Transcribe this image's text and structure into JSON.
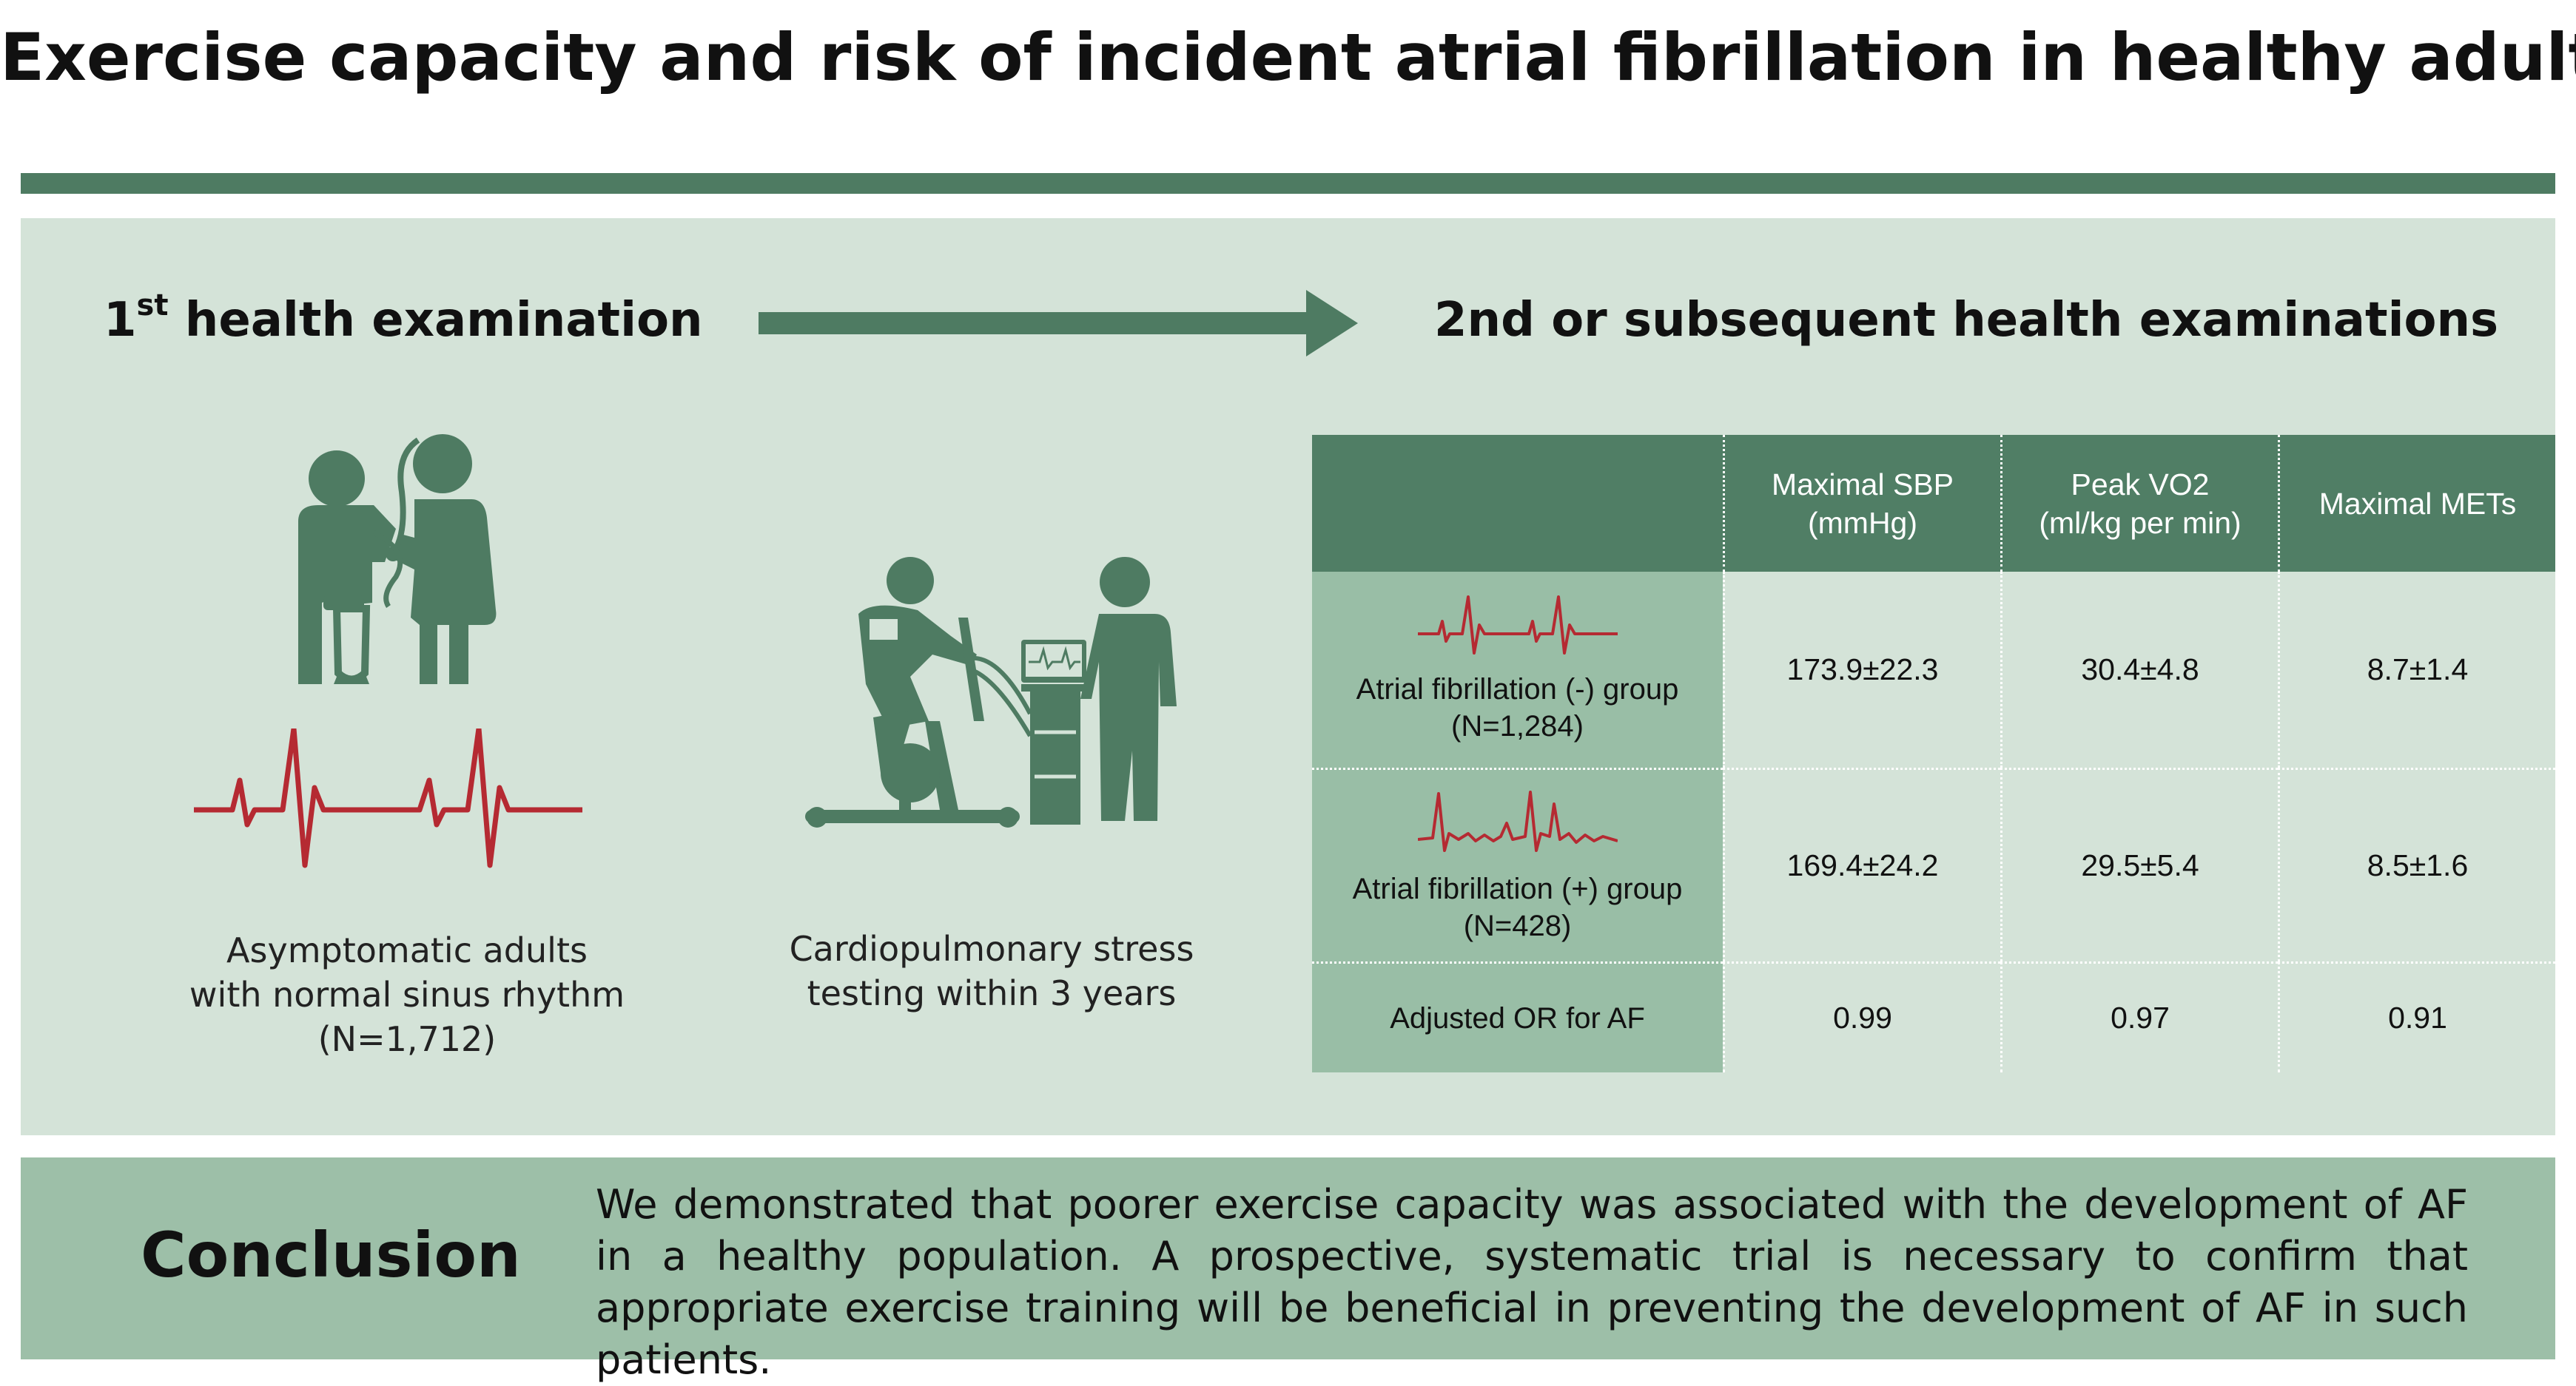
{
  "title": "Exercise capacity and risk of incident atrial fibrillation in healthy adults",
  "colors": {
    "dark_green": "#4e7b62",
    "panel_green": "#d4e3d8",
    "row_label_green": "#99bea6",
    "conclusion_green": "#9dbfa8",
    "ecg_red": "#b52a32"
  },
  "flow": {
    "first": {
      "heading_text": "health examination",
      "ordinal_number": "1",
      "ordinal_suffix": "st"
    },
    "second": {
      "heading": "2nd or subsequent health examinations"
    }
  },
  "steps": {
    "adults": {
      "line1": "Asymptomatic adults",
      "line2": "with normal sinus rhythm",
      "line3": "(N=1,712)"
    },
    "stress": {
      "line1": "Cardiopulmonary stress",
      "line2": "testing within 3 years"
    }
  },
  "table": {
    "columns": [
      {
        "line1": "Maximal SBP",
        "line2": "(mmHg)"
      },
      {
        "line1": "Peak VO2",
        "line2": "(ml/kg per min)"
      },
      {
        "line1": "Maximal METs",
        "line2": ""
      }
    ],
    "rows": [
      {
        "label": "Atrial fibrillation (-) group",
        "n": "(N=1,284)",
        "values": [
          "173.9±22.3",
          "30.4±4.8",
          "8.7±1.4"
        ]
      },
      {
        "label": "Atrial fibrillation (+) group",
        "n": "(N=428)",
        "values": [
          "169.4±24.2",
          "29.5±5.4",
          "8.5±1.6"
        ]
      },
      {
        "label": "Adjusted OR for AF",
        "n": "",
        "values": [
          "0.99",
          "0.97",
          "0.91"
        ]
      }
    ]
  },
  "conclusion": {
    "label": "Conclusion",
    "text": "We demonstrated that poorer exercise capacity was associated with the development of AF in a healthy population. A prospective, systematic trial is necessary to confirm that appropriate exercise training will be beneficial in preventing the development of AF in such patients."
  }
}
